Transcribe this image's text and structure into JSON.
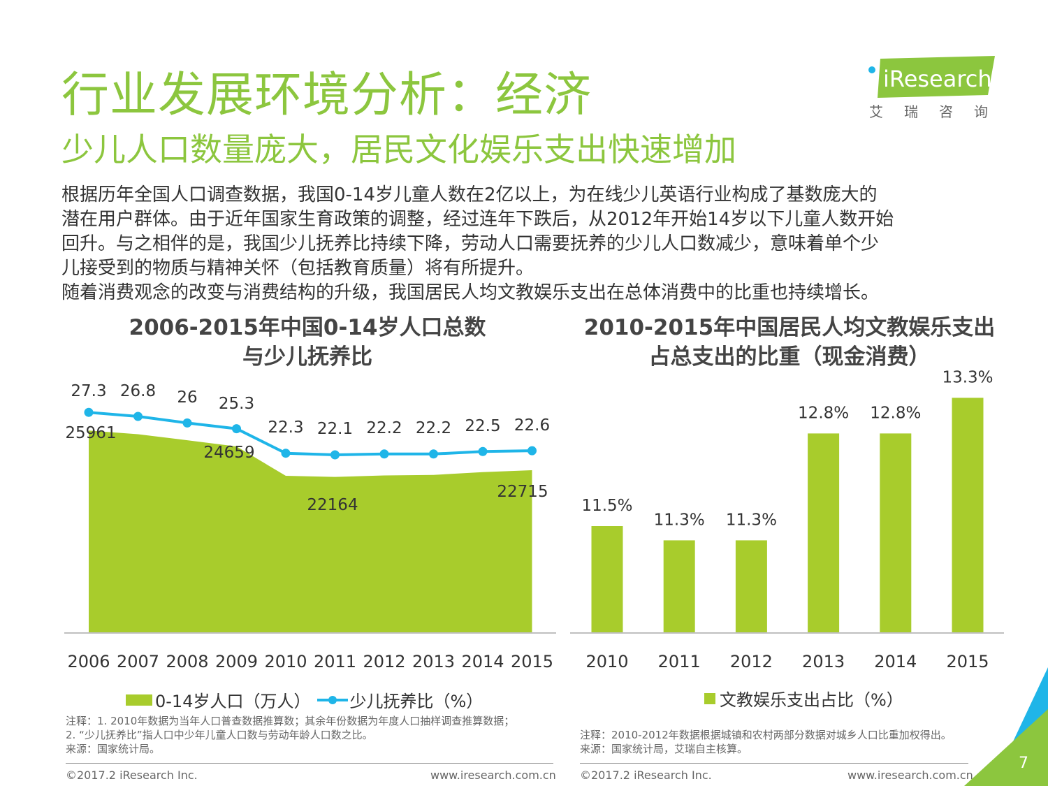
{
  "header": {
    "title": "行业发展环境分析：经济",
    "subtitle": "少儿人口数量庞大，居民文化娱乐支出快速增加"
  },
  "logo": {
    "brand": "iResearch",
    "cn": "艾瑞咨询"
  },
  "body": {
    "lines": [
      "根据历年全国人口调查数据，我国0-14岁儿童人数在2亿以上，为在线少儿英语行业构成了基数庞大的",
      "潜在用户群体。由于近年国家生育政策的调整，经过连年下跌后，从2012年开始14岁以下儿童人数开始",
      "回升。与之相伴的是，我国少儿抚养比持续下降，劳动人口需要抚养的少儿人口数减少，意味着单个少",
      "儿接受到的物质与精神关怀（包括教育质量）将有所提升。",
      "随着消费观念的改变与消费结构的升级，我国居民人均文教娱乐支出在总体消费中的比重也持续增长。"
    ]
  },
  "chart_data": [
    {
      "type": "area",
      "title": "2006-2015年中国0-14岁人口总数\n与少儿抚养比",
      "title_lines": [
        "2006-2015年中国0-14岁人口总数",
        "与少儿抚养比"
      ],
      "categories": [
        "2006",
        "2007",
        "2008",
        "2009",
        "2010",
        "2011",
        "2012",
        "2013",
        "2014",
        "2015"
      ],
      "series": [
        {
          "name": "0-14岁人口（万人）",
          "kind": "area",
          "color": "#a8cc2c",
          "values": [
            25961,
            25660,
            25166,
            24659,
            22259,
            22164,
            22287,
            22329,
            22558,
            22715
          ],
          "data_labels": [
            {
              "index": 0,
              "text": "25961"
            },
            {
              "index": 3,
              "text": "24659"
            },
            {
              "index": 5,
              "text": "22164"
            },
            {
              "index": 9,
              "text": "22715"
            }
          ]
        },
        {
          "name": "少儿抚养比（%）",
          "kind": "line",
          "color": "#1fb5e8",
          "values": [
            27.3,
            26.8,
            26,
            25.3,
            22.3,
            22.1,
            22.2,
            22.2,
            22.5,
            22.6
          ],
          "data_labels": [
            "27.3",
            "26.8",
            "26",
            "25.3",
            "22.3",
            "22.1",
            "22.2",
            "22.2",
            "22.5",
            "22.6"
          ]
        }
      ],
      "grid": false,
      "legend_position": "bottom",
      "notes": [
        "注释：1. 2010年数据为当年人口普查数据推算数；其余年份数据为年度人口抽样调查推算数据；",
        "2.  “少儿抚养比”指人口中少年儿童人口数与劳动年龄人口数之比。",
        "来源：国家统计局。"
      ]
    },
    {
      "type": "bar",
      "title_lines": [
        "2010-2015年中国居民人均文教娱乐支出",
        "占总支出的比重（现金消费）"
      ],
      "categories": [
        "2010",
        "2011",
        "2012",
        "2013",
        "2014",
        "2015"
      ],
      "series": [
        {
          "name": "文教娱乐支出占比（%）",
          "color": "#a8cc2c",
          "values": [
            11.5,
            11.3,
            11.3,
            12.8,
            12.8,
            13.3
          ],
          "data_labels": [
            "11.5%",
            "11.3%",
            "11.3%",
            "12.8%",
            "12.8%",
            "13.3%"
          ]
        }
      ],
      "grid": false,
      "legend_position": "bottom",
      "notes": [
        "注释：2010-2012年数据根据城镇和农村两部分数据对城乡人口比重加权得出。",
        "来源：国家统计局，艾瑞自主核算。"
      ]
    }
  ],
  "footer": {
    "copyright": "©2017.2 iResearch Inc.",
    "url": "www.iresearch.com.cn",
    "page": "7"
  },
  "colors": {
    "brand_green": "#8cc63e",
    "bar_green": "#a8cc2c",
    "line_blue": "#1fb5e8"
  }
}
